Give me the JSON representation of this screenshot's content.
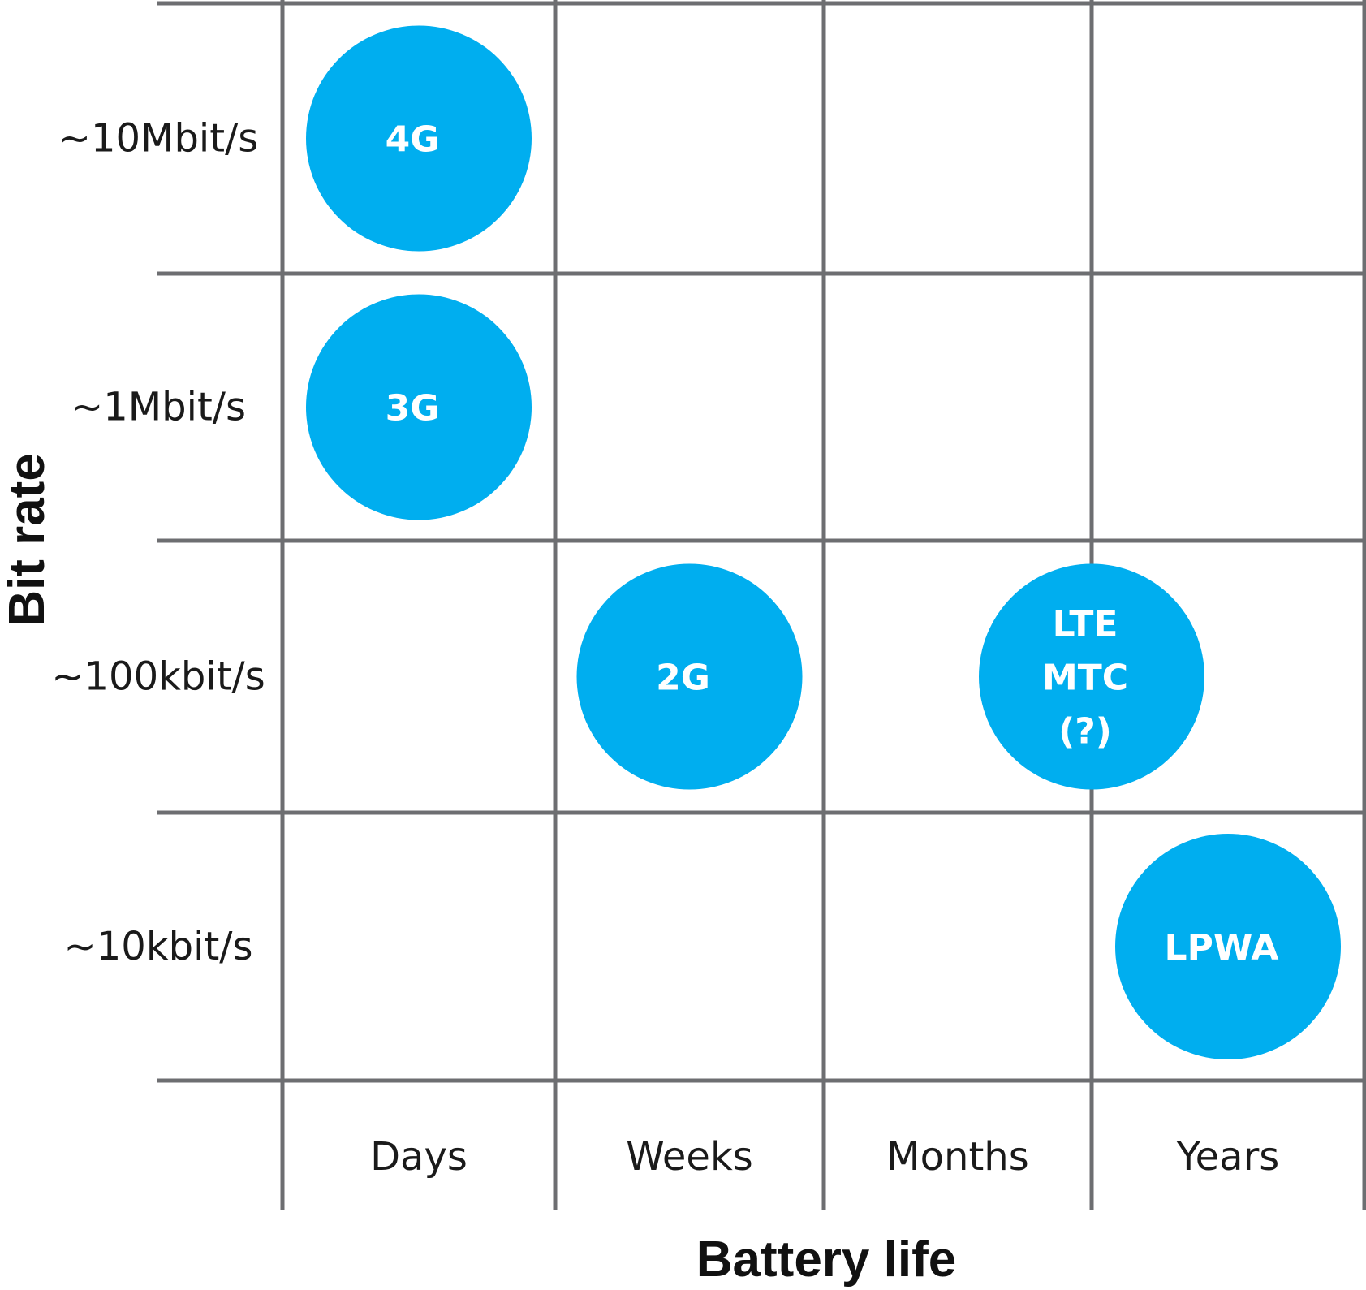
{
  "chart_data": {
    "type": "bubble-matrix",
    "title": "",
    "xlabel": "Battery life",
    "ylabel": "Bit rate",
    "x_categories": [
      "Days",
      "Weeks",
      "Months",
      "Years"
    ],
    "y_categories": [
      "~10Mbit/s",
      "~1Mbit/s",
      "~100kbit/s",
      "~10kbit/s"
    ],
    "grid": true,
    "points": [
      {
        "label": [
          "4G"
        ],
        "x": "Days",
        "y": "~10Mbit/s",
        "x_offset": 0.0
      },
      {
        "label": [
          "3G"
        ],
        "x": "Days",
        "y": "~1Mbit/s",
        "x_offset": 0.0
      },
      {
        "label": [
          "2G"
        ],
        "x": "Weeks",
        "y": "~100kbit/s",
        "x_offset": 0.0
      },
      {
        "label": [
          "LTE",
          "MTC",
          "(?)"
        ],
        "x": "Months",
        "y": "~100kbit/s",
        "x_offset": 0.5
      },
      {
        "label": [
          "LPWA"
        ],
        "x": "Years",
        "y": "~10kbit/s",
        "x_offset": 0.0
      }
    ],
    "colors": {
      "bubble": "#00AEEF",
      "grid": "#6d6e71",
      "bubble_text": "#ffffff"
    }
  }
}
